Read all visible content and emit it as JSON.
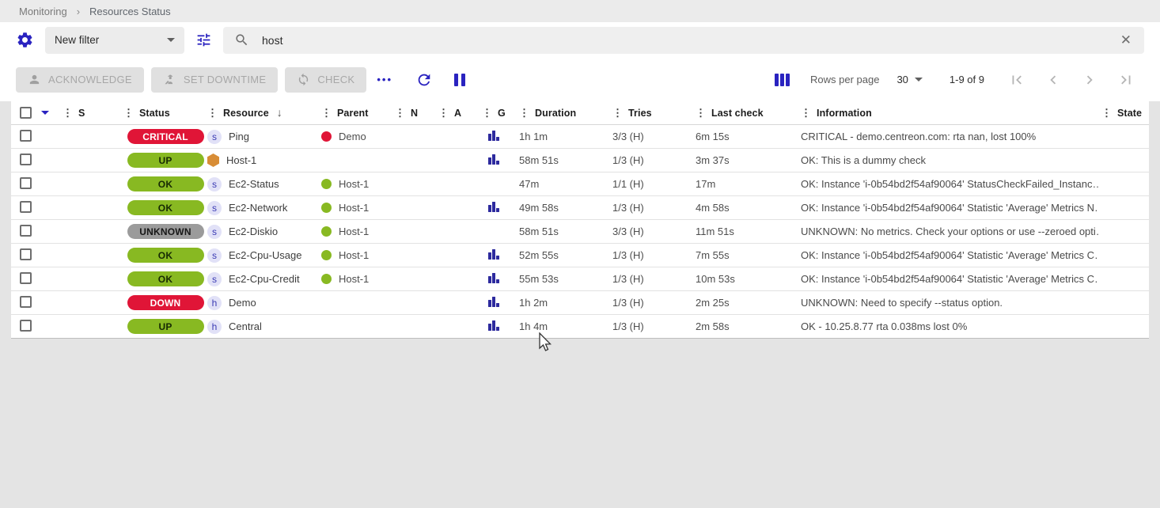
{
  "breadcrumb": {
    "items": [
      "Monitoring",
      "Resources Status"
    ],
    "separator": "›"
  },
  "filter_bar": {
    "selected_filter": "New filter",
    "search_value": "host",
    "clear_glyph": "✕"
  },
  "toolbar": {
    "buttons": [
      {
        "label": "ACKNOWLEDGE"
      },
      {
        "label": "SET DOWNTIME"
      },
      {
        "label": "CHECK"
      }
    ],
    "more_glyph": "•••",
    "rows_per_page_label": "Rows per page",
    "rows_per_page_value": "30",
    "range_text": "1-9 of 9"
  },
  "table": {
    "columns": [
      "S",
      "Status",
      "Resource",
      "Parent",
      "N",
      "A",
      "G",
      "Duration",
      "Tries",
      "Last check",
      "Information",
      "State"
    ],
    "sorted_column": "Resource",
    "sort_glyph": "↓",
    "drag_glyph": "⋮",
    "rows": [
      {
        "status": "CRITICAL",
        "severity": "critical",
        "badge": "s",
        "resource": "Ping",
        "parent": "Demo",
        "parent_state": "down",
        "has_graph": true,
        "duration": "1h 1m",
        "tries": "3/3 (H)",
        "last_check": "6m 15s",
        "information": "CRITICAL - demo.centreon.com: rta nan, lost 100%"
      },
      {
        "status": "UP",
        "severity": "success",
        "badge": "aws",
        "resource": "Host-1",
        "parent": "",
        "parent_state": "",
        "has_graph": true,
        "duration": "58m 51s",
        "tries": "1/3 (H)",
        "last_check": "3m 37s",
        "information": "OK: This is a dummy check"
      },
      {
        "status": "OK",
        "severity": "success",
        "badge": "s",
        "resource": "Ec2-Status",
        "parent": "Host-1",
        "parent_state": "up",
        "has_graph": false,
        "duration": "47m",
        "tries": "1/1 (H)",
        "last_check": "17m",
        "information": "OK: Instance 'i-0b54bd2f54af90064' StatusCheckFailed_Instanc…"
      },
      {
        "status": "OK",
        "severity": "success",
        "badge": "s",
        "resource": "Ec2-Network",
        "parent": "Host-1",
        "parent_state": "up",
        "has_graph": true,
        "duration": "49m 58s",
        "tries": "1/3 (H)",
        "last_check": "4m 58s",
        "information": "OK: Instance 'i-0b54bd2f54af90064' Statistic 'Average' Metrics N…"
      },
      {
        "status": "UNKNOWN",
        "severity": "unknown",
        "badge": "s",
        "resource": "Ec2-Diskio",
        "parent": "Host-1",
        "parent_state": "up",
        "has_graph": false,
        "duration": "58m 51s",
        "tries": "3/3 (H)",
        "last_check": "11m 51s",
        "information": "UNKNOWN: No metrics. Check your options or use --zeroed opti…"
      },
      {
        "status": "OK",
        "severity": "success",
        "badge": "s",
        "resource": "Ec2-Cpu-Usage",
        "parent": "Host-1",
        "parent_state": "up",
        "has_graph": true,
        "duration": "52m 55s",
        "tries": "1/3 (H)",
        "last_check": "7m 55s",
        "information": "OK: Instance 'i-0b54bd2f54af90064' Statistic 'Average' Metrics C…"
      },
      {
        "status": "OK",
        "severity": "success",
        "badge": "s",
        "resource": "Ec2-Cpu-Credit",
        "parent": "Host-1",
        "parent_state": "up",
        "has_graph": true,
        "duration": "55m 53s",
        "tries": "1/3 (H)",
        "last_check": "10m 53s",
        "information": "OK: Instance 'i-0b54bd2f54af90064' Statistic 'Average' Metrics C…"
      },
      {
        "status": "DOWN",
        "severity": "critical",
        "badge": "h",
        "resource": "Demo",
        "parent": "",
        "parent_state": "",
        "has_graph": true,
        "duration": "1h 2m",
        "tries": "1/3 (H)",
        "last_check": "2m 25s",
        "information": "UNKNOWN: Need to specify --status option."
      },
      {
        "status": "UP",
        "severity": "success",
        "badge": "h",
        "resource": "Central",
        "parent": "",
        "parent_state": "",
        "has_graph": true,
        "duration": "1h 4m",
        "tries": "1/3 (H)",
        "last_check": "2m 58s",
        "information": "OK - 10.25.8.77 rta 0.038ms lost 0%"
      }
    ]
  },
  "colors": {
    "accent": "#2a23c0",
    "critical": "#e01537",
    "ok": "#88b922",
    "unknown": "#9b9b9b"
  }
}
